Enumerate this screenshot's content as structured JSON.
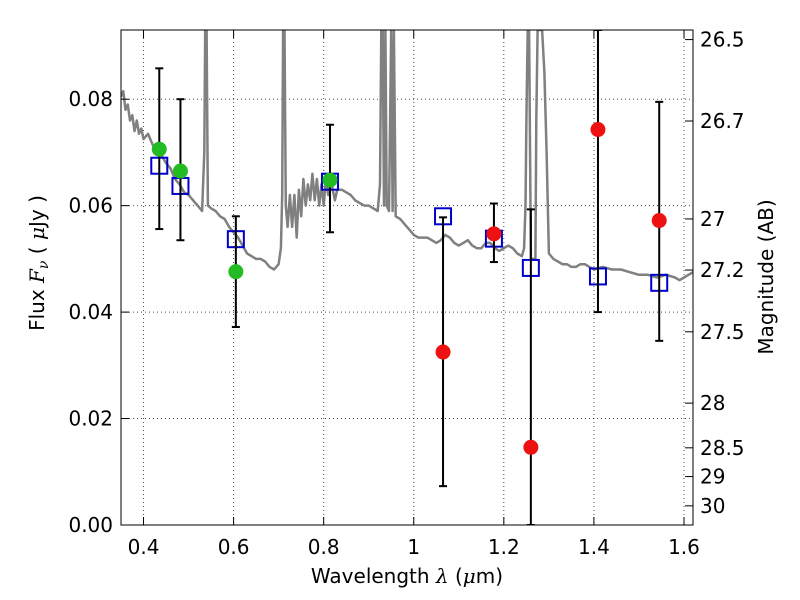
{
  "chart_data": {
    "type": "scatter",
    "xlabel": {
      "prefix": "Wavelength  ",
      "symbol": "λ",
      "open": " (",
      "unit_mu": "μ",
      "unit": "m)"
    },
    "ylabel": {
      "prefix": "Flux  ",
      "symbol": "F",
      "sub": "ν",
      "open": "  (  ",
      "unit_mu": "μ",
      "unit": "Jy )"
    },
    "y2label": "Magnitude (AB)",
    "xlim": [
      0.35,
      1.62
    ],
    "ylim": [
      0.0,
      0.093
    ],
    "x_ticks": [
      {
        "v": 0.4,
        "label": "0.4"
      },
      {
        "v": 0.6,
        "label": "0.6"
      },
      {
        "v": 0.8,
        "label": "0.8"
      },
      {
        "v": 1.0,
        "label": "1"
      },
      {
        "v": 1.2,
        "label": "1.2"
      },
      {
        "v": 1.4,
        "label": "1.4"
      },
      {
        "v": 1.6,
        "label": "1.6"
      }
    ],
    "y_ticks": [
      {
        "v": 0.0,
        "label": "0.00"
      },
      {
        "v": 0.02,
        "label": "0.02"
      },
      {
        "v": 0.04,
        "label": "0.04"
      },
      {
        "v": 0.06,
        "label": "0.06"
      },
      {
        "v": 0.08,
        "label": "0.08"
      }
    ],
    "mag_ticks": [
      {
        "v": 0.0912,
        "label": "26.5"
      },
      {
        "v": 0.0759,
        "label": "26.7"
      },
      {
        "v": 0.0575,
        "label": "27"
      },
      {
        "v": 0.0479,
        "label": "27.2"
      },
      {
        "v": 0.0363,
        "label": "27.5"
      },
      {
        "v": 0.0229,
        "label": "28"
      },
      {
        "v": 0.0145,
        "label": "28.5"
      },
      {
        "v": 0.0091,
        "label": "29"
      },
      {
        "v": 0.0036,
        "label": "30"
      }
    ],
    "grid": true,
    "colors": {
      "template": "#808080",
      "green": "#22bb22",
      "red": "#ee1111",
      "model": "#0000cc",
      "errorbar": "#000000"
    },
    "series": [
      {
        "kind": "line",
        "points": [
          [
            0.35,
            0.0805
          ],
          [
            0.355,
            0.0815
          ],
          [
            0.36,
            0.078
          ],
          [
            0.365,
            0.079
          ],
          [
            0.37,
            0.076
          ],
          [
            0.375,
            0.077
          ],
          [
            0.38,
            0.074
          ],
          [
            0.385,
            0.076
          ],
          [
            0.39,
            0.0735
          ],
          [
            0.395,
            0.0745
          ],
          [
            0.4,
            0.0725
          ],
          [
            0.41,
            0.0735
          ],
          [
            0.42,
            0.0715
          ],
          [
            0.43,
            0.07
          ],
          [
            0.44,
            0.0695
          ],
          [
            0.45,
            0.068
          ],
          [
            0.46,
            0.067
          ],
          [
            0.47,
            0.065
          ],
          [
            0.48,
            0.064
          ],
          [
            0.49,
            0.0625
          ],
          [
            0.5,
            0.062
          ],
          [
            0.51,
            0.061
          ],
          [
            0.52,
            0.06
          ],
          [
            0.53,
            0.059
          ],
          [
            0.535,
            0.07
          ],
          [
            0.537,
            0.093
          ],
          [
            0.54,
            0.093
          ],
          [
            0.543,
            0.06
          ],
          [
            0.55,
            0.0595
          ],
          [
            0.56,
            0.059
          ],
          [
            0.57,
            0.058
          ],
          [
            0.58,
            0.0575
          ],
          [
            0.59,
            0.056
          ],
          [
            0.6,
            0.055
          ],
          [
            0.61,
            0.054
          ],
          [
            0.62,
            0.0525
          ],
          [
            0.63,
            0.051
          ],
          [
            0.64,
            0.0505
          ],
          [
            0.65,
            0.05
          ],
          [
            0.66,
            0.05
          ],
          [
            0.67,
            0.0495
          ],
          [
            0.68,
            0.0485
          ],
          [
            0.69,
            0.048
          ],
          [
            0.7,
            0.049
          ],
          [
            0.705,
            0.052
          ],
          [
            0.708,
            0.062
          ],
          [
            0.71,
            0.093
          ],
          [
            0.713,
            0.093
          ],
          [
            0.716,
            0.06
          ],
          [
            0.72,
            0.056
          ],
          [
            0.725,
            0.062
          ],
          [
            0.73,
            0.056
          ],
          [
            0.735,
            0.062
          ],
          [
            0.74,
            0.054
          ],
          [
            0.745,
            0.063
          ],
          [
            0.75,
            0.058
          ],
          [
            0.755,
            0.065
          ],
          [
            0.76,
            0.06
          ],
          [
            0.765,
            0.064
          ],
          [
            0.77,
            0.061
          ],
          [
            0.775,
            0.066
          ],
          [
            0.78,
            0.061
          ],
          [
            0.785,
            0.065
          ],
          [
            0.79,
            0.06
          ],
          [
            0.795,
            0.064
          ],
          [
            0.8,
            0.06
          ],
          [
            0.805,
            0.065
          ],
          [
            0.81,
            0.062
          ],
          [
            0.815,
            0.066
          ],
          [
            0.82,
            0.063
          ],
          [
            0.825,
            0.061
          ],
          [
            0.83,
            0.063
          ],
          [
            0.84,
            0.063
          ],
          [
            0.85,
            0.0625
          ],
          [
            0.86,
            0.062
          ],
          [
            0.87,
            0.061
          ],
          [
            0.88,
            0.0605
          ],
          [
            0.89,
            0.06
          ],
          [
            0.9,
            0.06
          ],
          [
            0.91,
            0.0595
          ],
          [
            0.92,
            0.059
          ],
          [
            0.925,
            0.064
          ],
          [
            0.928,
            0.093
          ],
          [
            0.931,
            0.093
          ],
          [
            0.934,
            0.06
          ],
          [
            0.937,
            0.093
          ],
          [
            0.94,
            0.06
          ],
          [
            0.945,
            0.059
          ],
          [
            0.95,
            0.093
          ],
          [
            0.953,
            0.059
          ],
          [
            0.956,
            0.093
          ],
          [
            0.96,
            0.058
          ],
          [
            0.97,
            0.0575
          ],
          [
            0.98,
            0.0565
          ],
          [
            0.99,
            0.0555
          ],
          [
            1.0,
            0.0545
          ],
          [
            1.01,
            0.054
          ],
          [
            1.02,
            0.054
          ],
          [
            1.03,
            0.054
          ],
          [
            1.04,
            0.0535
          ],
          [
            1.05,
            0.053
          ],
          [
            1.06,
            0.0535
          ],
          [
            1.07,
            0.0545
          ],
          [
            1.08,
            0.054
          ],
          [
            1.09,
            0.053
          ],
          [
            1.1,
            0.0525
          ],
          [
            1.11,
            0.053
          ],
          [
            1.12,
            0.0535
          ],
          [
            1.13,
            0.0525
          ],
          [
            1.14,
            0.052
          ],
          [
            1.15,
            0.052
          ],
          [
            1.16,
            0.053
          ],
          [
            1.17,
            0.053
          ],
          [
            1.18,
            0.052
          ],
          [
            1.19,
            0.0515
          ],
          [
            1.2,
            0.052
          ],
          [
            1.21,
            0.0525
          ],
          [
            1.22,
            0.052
          ],
          [
            1.23,
            0.051
          ],
          [
            1.24,
            0.0505
          ],
          [
            1.245,
            0.052
          ],
          [
            1.248,
            0.06
          ],
          [
            1.25,
            0.076
          ],
          [
            1.253,
            0.093
          ],
          [
            1.256,
            0.093
          ],
          [
            1.26,
            0.05
          ],
          [
            1.265,
            0.05
          ],
          [
            1.27,
            0.05
          ],
          [
            1.272,
            0.076
          ],
          [
            1.275,
            0.093
          ],
          [
            1.285,
            0.093
          ],
          [
            1.29,
            0.085
          ],
          [
            1.295,
            0.07
          ],
          [
            1.3,
            0.051
          ],
          [
            1.31,
            0.05
          ],
          [
            1.32,
            0.0495
          ],
          [
            1.33,
            0.049
          ],
          [
            1.34,
            0.049
          ],
          [
            1.35,
            0.0485
          ],
          [
            1.36,
            0.0485
          ],
          [
            1.37,
            0.049
          ],
          [
            1.38,
            0.049
          ],
          [
            1.39,
            0.0485
          ],
          [
            1.4,
            0.048
          ],
          [
            1.42,
            0.0485
          ],
          [
            1.44,
            0.048
          ],
          [
            1.46,
            0.048
          ],
          [
            1.48,
            0.0475
          ],
          [
            1.5,
            0.047
          ],
          [
            1.52,
            0.047
          ],
          [
            1.54,
            0.0465
          ],
          [
            1.56,
            0.047
          ],
          [
            1.58,
            0.0465
          ],
          [
            1.59,
            0.046
          ],
          [
            1.6,
            0.0465
          ],
          [
            1.61,
            0.047
          ],
          [
            1.62,
            0.0475
          ]
        ]
      },
      {
        "kind": "points-green",
        "points": [
          [
            0.435,
            0.0706
          ],
          [
            0.482,
            0.0665
          ],
          [
            0.605,
            0.0476
          ],
          [
            0.814,
            0.0648
          ]
        ],
        "err": [
          [
            0.0556,
            0.0858
          ],
          [
            0.0535,
            0.08
          ],
          [
            0.0372,
            0.058
          ],
          [
            0.055,
            0.0752
          ]
        ]
      },
      {
        "kind": "points-red",
        "points": [
          [
            1.065,
            0.0325
          ],
          [
            1.178,
            0.0547
          ],
          [
            1.26,
            0.0146
          ],
          [
            1.409,
            0.0743
          ],
          [
            1.545,
            0.0572
          ]
        ],
        "err": [
          [
            0.0073,
            0.0578
          ],
          [
            0.0494,
            0.0604
          ],
          [
            0.0,
            0.0593
          ],
          [
            0.04,
            0.093
          ],
          [
            0.0346,
            0.0795
          ]
        ]
      },
      {
        "kind": "model-squares",
        "points": [
          [
            0.435,
            0.0675
          ],
          [
            0.482,
            0.0637
          ],
          [
            0.605,
            0.0537
          ],
          [
            0.814,
            0.0645
          ],
          [
            1.065,
            0.058
          ],
          [
            1.178,
            0.0538
          ],
          [
            1.26,
            0.0483
          ],
          [
            1.409,
            0.0467
          ],
          [
            1.545,
            0.0455
          ]
        ]
      }
    ]
  }
}
